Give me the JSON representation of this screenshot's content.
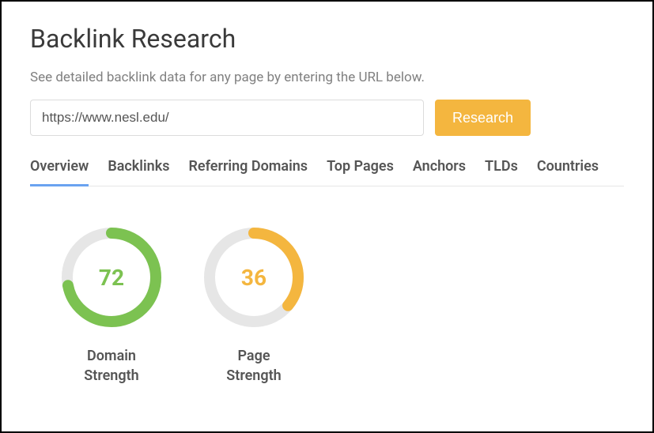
{
  "page": {
    "title": "Backlink Research",
    "description": "See detailed backlink data for any page by entering the URL below."
  },
  "search": {
    "url_value": "https://www.nesl.edu/",
    "button_label": "Research",
    "button_bg": "#f4b63f",
    "button_text_color": "#ffffff"
  },
  "tabs": {
    "items": [
      {
        "label": "Overview",
        "active": true
      },
      {
        "label": "Backlinks",
        "active": false
      },
      {
        "label": "Referring Domains",
        "active": false
      },
      {
        "label": "Top Pages",
        "active": false
      },
      {
        "label": "Anchors",
        "active": false
      },
      {
        "label": "TLDs",
        "active": false
      },
      {
        "label": "Countries",
        "active": false
      }
    ],
    "active_underline_color": "#6aa3f0"
  },
  "metrics": [
    {
      "label": "Domain\nStrength",
      "value": 72,
      "max": 100,
      "color": "#7cc251",
      "track_color": "#e6e6e6",
      "text_color": "#7cc251",
      "stroke_width": 14
    },
    {
      "label": "Page\nStrength",
      "value": 36,
      "max": 100,
      "color": "#f4b63f",
      "track_color": "#e6e6e6",
      "text_color": "#f4b63f",
      "stroke_width": 14
    }
  ]
}
